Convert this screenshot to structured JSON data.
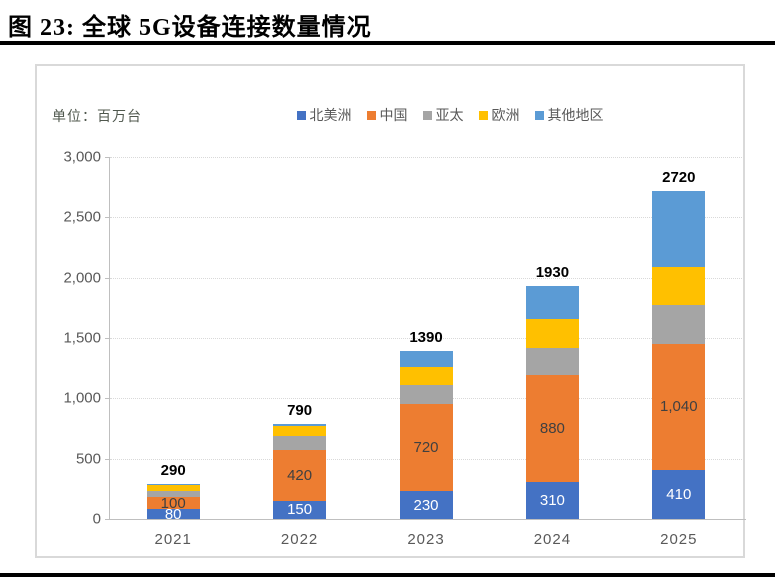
{
  "title": "图 23: 全球 5G设备连接数量情况",
  "chart_data": {
    "type": "bar",
    "stacked": true,
    "unit_label": "单位：百万台",
    "categories": [
      "2021",
      "2022",
      "2023",
      "2024",
      "2025"
    ],
    "series": [
      {
        "name": "北美洲",
        "color": "#4472C4",
        "values": [
          80,
          150,
          230,
          310,
          410
        ],
        "labels": [
          "80",
          "150",
          "230",
          "310",
          "410"
        ],
        "label_color": "#ffffff"
      },
      {
        "name": "中国",
        "color": "#ED7D31",
        "values": [
          100,
          420,
          720,
          880,
          1040
        ],
        "labels": [
          "100",
          "420",
          "720",
          "880",
          "1,040"
        ],
        "label_color": "#404040"
      },
      {
        "name": "亚太",
        "color": "#A5A5A5",
        "values": [
          50,
          120,
          160,
          230,
          320
        ]
      },
      {
        "name": "欧洲",
        "color": "#FFC000",
        "values": [
          50,
          80,
          150,
          240,
          320
        ]
      },
      {
        "name": "其他地区",
        "color": "#5B9BD5",
        "values": [
          10,
          20,
          130,
          270,
          630
        ]
      }
    ],
    "totals": [
      "290",
      "790",
      "1390",
      "1930",
      "2720"
    ],
    "y_axis": {
      "min": 0,
      "max": 3000,
      "step": 500,
      "tick_labels": [
        "0",
        "500",
        "1,000",
        "1,500",
        "2,000",
        "2,500",
        "3,000"
      ]
    },
    "grid": "dotted",
    "legend_position": "top"
  }
}
